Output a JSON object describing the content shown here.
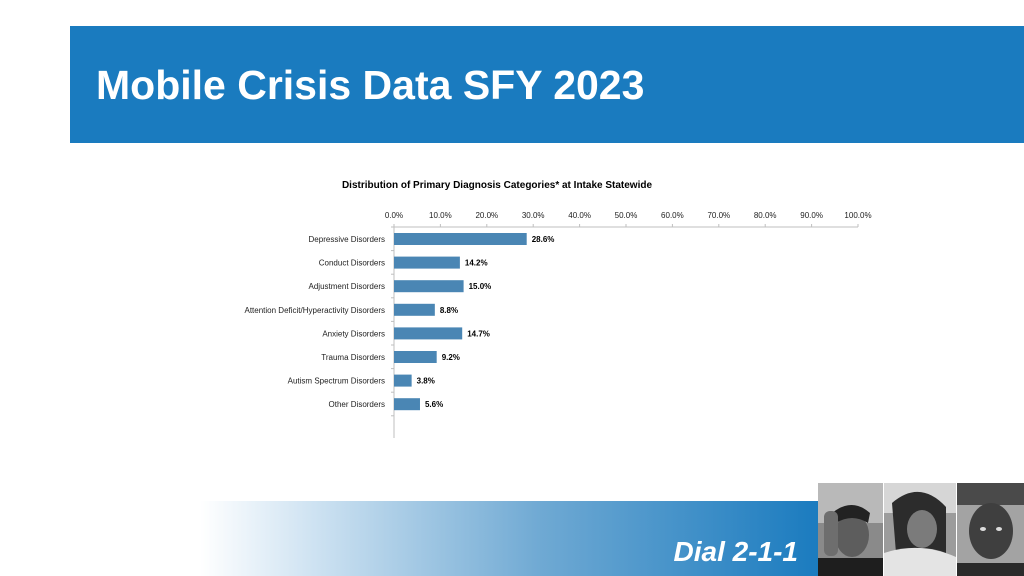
{
  "header": {
    "title": "Mobile Crisis Data SFY 2023"
  },
  "footer": {
    "text": "Dial 2-1-1"
  },
  "photos": [
    {
      "description": "boy-holding-head-photo"
    },
    {
      "description": "girl-resting-head-photo"
    },
    {
      "description": "boy-looking-up-photo"
    }
  ],
  "colors": {
    "header_bg": "#1a7bbf",
    "bar": "#4a86b4",
    "axis": "#bfbfbf"
  },
  "chart_data": {
    "type": "bar",
    "orientation": "horizontal",
    "title": "Distribution of Primary Diagnosis Categories* at Intake Statewide",
    "categories": [
      "Depressive Disorders",
      "Conduct Disorders",
      "Adjustment Disorders",
      "Attention Deficit/Hyperactivity Disorders",
      "Anxiety Disorders",
      "Trauma Disorders",
      "Autism Spectrum Disorders",
      "Other Disorders"
    ],
    "values": [
      28.6,
      14.2,
      15.0,
      8.8,
      14.7,
      9.2,
      3.8,
      5.6
    ],
    "value_labels": [
      "28.6%",
      "14.2%",
      "15.0%",
      "8.8%",
      "14.7%",
      "9.2%",
      "3.8%",
      "5.6%"
    ],
    "xlim": [
      0,
      100
    ],
    "x_ticks": [
      0,
      10,
      20,
      30,
      40,
      50,
      60,
      70,
      80,
      90,
      100
    ],
    "x_tick_labels": [
      "0.0%",
      "10.0%",
      "20.0%",
      "30.0%",
      "40.0%",
      "50.0%",
      "60.0%",
      "70.0%",
      "80.0%",
      "90.0%",
      "100.0%"
    ],
    "x_axis_position": "top",
    "xlabel": "",
    "ylabel": "",
    "grid": false
  }
}
